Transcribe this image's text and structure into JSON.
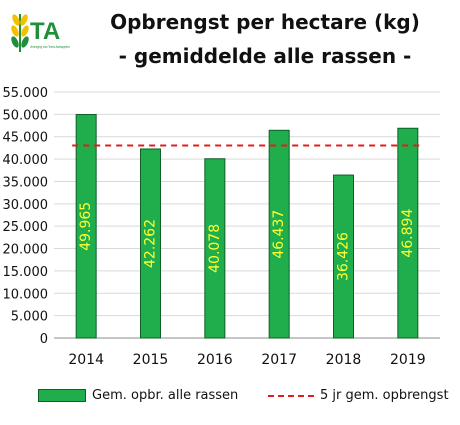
{
  "logo": {
    "text": "TA",
    "subtext": "Vereniging voor Telers Aardappelen"
  },
  "chart_data": {
    "type": "bar",
    "title": "Opbrengst per hectare (kg)",
    "subtitle": "- gemiddelde alle rassen -",
    "xlabel": "",
    "ylabel": "",
    "categories": [
      "2014",
      "2015",
      "2016",
      "2017",
      "2018",
      "2019"
    ],
    "series": [
      {
        "name": "Gem. opbr. alle rassen",
        "values": [
          49965,
          42262,
          40078,
          46437,
          36426,
          46894
        ],
        "labels": [
          "49.965",
          "42.262",
          "40.078",
          "46.437",
          "36.426",
          "46.894"
        ],
        "color": "#1fae4b",
        "label_color": "#ffff33"
      },
      {
        "name": "5 jr gem. opbrengst",
        "type": "line",
        "style": "dashed",
        "value": 43034,
        "color": "#e31c1c"
      }
    ],
    "ylim": [
      0,
      55000
    ],
    "yticks": [
      0,
      5000,
      10000,
      15000,
      20000,
      25000,
      30000,
      35000,
      40000,
      45000,
      50000,
      55000
    ],
    "ytick_labels": [
      "0",
      "5.000",
      "10.000",
      "15.000",
      "20.000",
      "25.000",
      "30.000",
      "35.000",
      "40.000",
      "45.000",
      "50.000",
      "55.000"
    ],
    "grid": true,
    "legend_position": "bottom"
  }
}
